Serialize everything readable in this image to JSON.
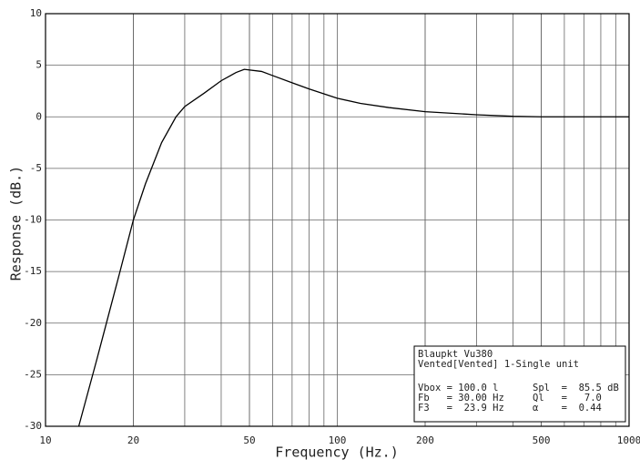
{
  "chart_data": {
    "type": "line",
    "x_label": "Frequency (Hz.)",
    "y_label": "Response (dB.)",
    "x": [
      13,
      15,
      18,
      20,
      22,
      25,
      28,
      30,
      35,
      40,
      45,
      48,
      55,
      60,
      70,
      80,
      100,
      120,
      150,
      200,
      300,
      400,
      500,
      1000
    ],
    "series": [
      {
        "color": "#000000",
        "values": [
          -30,
          -23.5,
          -15,
          -10,
          -6.5,
          -2.5,
          0,
          1,
          2.3,
          3.5,
          4.3,
          4.6,
          4.4,
          4,
          3.3,
          2.7,
          1.8,
          1.3,
          0.9,
          0.5,
          0.2,
          0.05,
          0,
          0
        ]
      }
    ],
    "xlim": [
      10,
      1000
    ],
    "ylim": [
      -30,
      10
    ],
    "x_log": true,
    "grid": true,
    "minor_grid": true,
    "xticks": [
      10,
      20,
      50,
      100,
      200,
      500,
      1000
    ],
    "yticks": [
      -30,
      -25,
      -20,
      -15,
      -10,
      -5,
      0,
      5,
      10
    ],
    "annotation": {
      "lines": [
        "Blaupkt Vu380",
        "Vented[Vented] 1-Single unit"
      ],
      "rows": [
        [
          "Vbox = 100.0 l",
          "Spl  =  85.5 dB"
        ],
        [
          "Fb   = 30.00 Hz",
          "Ql   =   7.0"
        ],
        [
          "F3   =  23.9 Hz",
          "α    =  0.44"
        ]
      ]
    }
  }
}
